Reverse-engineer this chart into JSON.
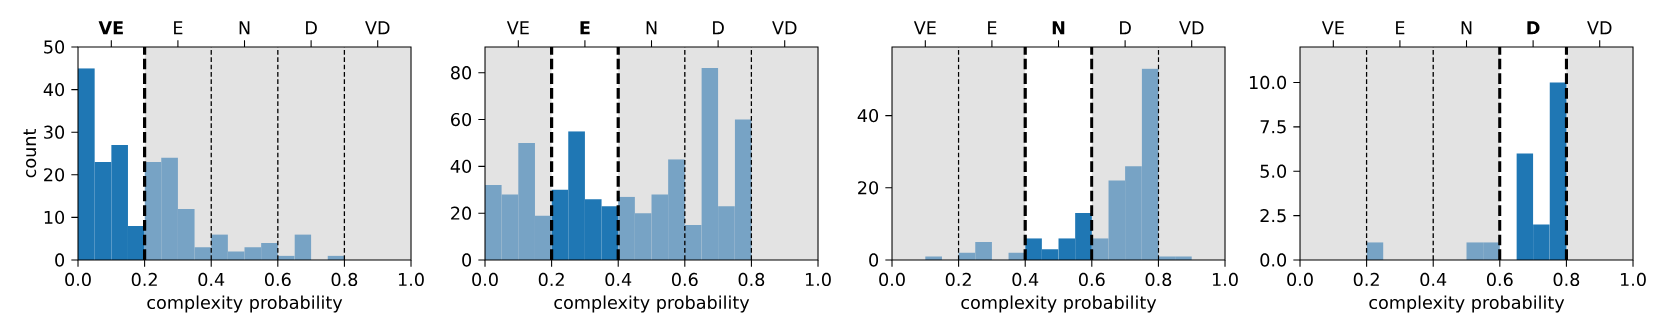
{
  "chart_data": [
    {
      "type": "histogram",
      "xlabel": "complexity probability",
      "ylabel": "count",
      "bins": [
        0,
        0.05,
        0.1,
        0.15,
        0.2,
        0.25,
        0.3,
        0.35,
        0.4,
        0.45,
        0.5,
        0.55,
        0.6,
        0.65,
        0.7,
        0.75,
        0.8,
        0.85,
        0.9,
        0.95,
        1.0
      ],
      "values": [
        45,
        23,
        27,
        8,
        23,
        24,
        12,
        3,
        6,
        2,
        3,
        4,
        1,
        6,
        0,
        1,
        0,
        0,
        0,
        0
      ],
      "colors": [
        "#1f77b4",
        "#1f77b4",
        "#1f77b4",
        "#1f77b4",
        "#77a3c5",
        "#77a3c5",
        "#77a3c5",
        "#77a3c5",
        "#77a3c5",
        "#77a3c5",
        "#77a3c5",
        "#77a3c5",
        "#77a3c5",
        "#77a3c5",
        "#77a3c5",
        "#77a3c5",
        "#77a3c5",
        "#77a3c5",
        "#77a3c5",
        "#77a3c5"
      ],
      "xlim": [
        0,
        1
      ],
      "ylim": [
        0,
        50
      ],
      "xticks": [
        {
          "value": 0,
          "label": "0.0"
        },
        {
          "value": 0.2,
          "label": "0.2"
        },
        {
          "value": 0.4,
          "label": "0.4"
        },
        {
          "value": 0.6,
          "label": "0.6"
        },
        {
          "value": 0.8,
          "label": "0.8"
        },
        {
          "value": 1,
          "label": "1.0"
        }
      ],
      "yticks": [
        0,
        10,
        20,
        30,
        40,
        50
      ],
      "annotations": [
        "**VE**",
        "E",
        "N",
        "D",
        "VD"
      ],
      "bands": [
        {
          "axis": "x",
          "from": 0.2,
          "to": 1.0,
          "color": "#e3e3e3"
        }
      ],
      "ref_lines": [
        {
          "axis": "x",
          "value": 0.2,
          "line_style": "dashed"
        },
        {
          "axis": "x",
          "value": 0.4,
          "line_style": "dashed"
        },
        {
          "axis": "x",
          "value": 0.6,
          "line_style": "dashed"
        },
        {
          "axis": "x",
          "value": 0.8,
          "line_style": "dashed"
        }
      ]
    },
    {
      "type": "histogram",
      "xlabel": "complexity probability",
      "bins": [
        0,
        0.05,
        0.1,
        0.15,
        0.2,
        0.25,
        0.3,
        0.35,
        0.4,
        0.45,
        0.5,
        0.55,
        0.6,
        0.65,
        0.7,
        0.75,
        0.8,
        0.85,
        0.9,
        0.95,
        1.0
      ],
      "values": [
        32,
        28,
        50,
        19,
        30,
        55,
        26,
        23,
        27,
        20,
        28,
        43,
        15,
        82,
        23,
        60,
        0,
        0,
        0,
        0
      ],
      "colors": [
        "#77a3c5",
        "#77a3c5",
        "#77a3c5",
        "#77a3c5",
        "#1f77b4",
        "#1f77b4",
        "#1f77b4",
        "#1f77b4",
        "#77a3c5",
        "#77a3c5",
        "#77a3c5",
        "#77a3c5",
        "#77a3c5",
        "#77a3c5",
        "#77a3c5",
        "#77a3c5",
        "#77a3c5",
        "#77a3c5",
        "#77a3c5",
        "#77a3c5"
      ],
      "xlim": [
        0,
        1
      ],
      "ylim": [
        0,
        91
      ],
      "xticks": [
        {
          "value": 0,
          "label": "0.0"
        },
        {
          "value": 0.2,
          "label": "0.2"
        },
        {
          "value": 0.4,
          "label": "0.4"
        },
        {
          "value": 0.6,
          "label": "0.6"
        },
        {
          "value": 0.8,
          "label": "0.8"
        },
        {
          "value": 1,
          "label": "1.0"
        }
      ],
      "yticks": [
        0,
        20,
        40,
        60,
        80
      ],
      "annotations": [
        "VE",
        "**E**",
        "N",
        "D",
        "VD"
      ],
      "bands": [
        {
          "axis": "x",
          "from": 0,
          "to": 0.2,
          "color": "#e3e3e3"
        },
        {
          "axis": "x",
          "from": 0.4,
          "to": 1.0,
          "color": "#e3e3e3"
        }
      ],
      "ref_lines": [
        {
          "axis": "x",
          "value": 0.2,
          "line_style": "dashed"
        },
        {
          "axis": "x",
          "value": 0.4,
          "line_style": "dashed"
        },
        {
          "axis": "x",
          "value": 0.6,
          "line_style": "dashed"
        },
        {
          "axis": "x",
          "value": 0.8,
          "line_style": "dashed"
        }
      ]
    },
    {
      "type": "histogram",
      "xlabel": "complexity probability",
      "bins": [
        0,
        0.05,
        0.1,
        0.15,
        0.2,
        0.25,
        0.3,
        0.35,
        0.4,
        0.45,
        0.5,
        0.55,
        0.6,
        0.65,
        0.7,
        0.75,
        0.8,
        0.85,
        0.9,
        0.95,
        1.0
      ],
      "values": [
        0,
        0,
        1,
        0,
        2,
        5,
        0,
        2,
        6,
        3,
        6,
        13,
        6,
        22,
        26,
        53,
        1,
        1,
        0,
        0
      ],
      "colors": [
        "#77a3c5",
        "#77a3c5",
        "#77a3c5",
        "#77a3c5",
        "#77a3c5",
        "#77a3c5",
        "#77a3c5",
        "#77a3c5",
        "#1f77b4",
        "#1f77b4",
        "#1f77b4",
        "#1f77b4",
        "#77a3c5",
        "#77a3c5",
        "#77a3c5",
        "#77a3c5",
        "#77a3c5",
        "#77a3c5",
        "#77a3c5",
        "#77a3c5"
      ],
      "xlim": [
        0,
        1
      ],
      "ylim": [
        0,
        59
      ],
      "xticks": [
        {
          "value": 0,
          "label": "0.0"
        },
        {
          "value": 0.2,
          "label": "0.2"
        },
        {
          "value": 0.4,
          "label": "0.4"
        },
        {
          "value": 0.6,
          "label": "0.6"
        },
        {
          "value": 0.8,
          "label": "0.8"
        },
        {
          "value": 1,
          "label": "1.0"
        }
      ],
      "yticks": [
        0,
        20,
        40
      ],
      "annotations": [
        "VE",
        "E",
        "**N**",
        "D",
        "VD"
      ],
      "bands": [
        {
          "axis": "x",
          "from": 0,
          "to": 0.4,
          "color": "#e3e3e3"
        },
        {
          "axis": "x",
          "from": 0.6,
          "to": 1.0,
          "color": "#e3e3e3"
        }
      ],
      "ref_lines": [
        {
          "axis": "x",
          "value": 0.2,
          "line_style": "dashed"
        },
        {
          "axis": "x",
          "value": 0.4,
          "line_style": "dashed"
        },
        {
          "axis": "x",
          "value": 0.6,
          "line_style": "dashed"
        },
        {
          "axis": "x",
          "value": 0.8,
          "line_style": "dashed"
        }
      ]
    },
    {
      "type": "histogram",
      "xlabel": "complexity probability",
      "bins": [
        0,
        0.05,
        0.1,
        0.15,
        0.2,
        0.25,
        0.3,
        0.35,
        0.4,
        0.45,
        0.5,
        0.55,
        0.6,
        0.65,
        0.7,
        0.75,
        0.8,
        0.85,
        0.9,
        0.95,
        1.0
      ],
      "values": [
        0,
        0,
        0,
        0,
        1,
        0,
        0,
        0,
        0,
        0,
        1,
        1,
        0,
        6,
        2,
        10,
        0,
        0,
        0,
        0
      ],
      "colors": [
        "#77a3c5",
        "#77a3c5",
        "#77a3c5",
        "#77a3c5",
        "#77a3c5",
        "#77a3c5",
        "#77a3c5",
        "#77a3c5",
        "#77a3c5",
        "#77a3c5",
        "#77a3c5",
        "#77a3c5",
        "#1f77b4",
        "#1f77b4",
        "#1f77b4",
        "#1f77b4",
        "#77a3c5",
        "#77a3c5",
        "#77a3c5",
        "#77a3c5"
      ],
      "xlim": [
        0,
        1
      ],
      "ylim": [
        0,
        12
      ],
      "xticks": [
        {
          "value": 0,
          "label": "0.0"
        },
        {
          "value": 0.2,
          "label": "0.2"
        },
        {
          "value": 0.4,
          "label": "0.4"
        },
        {
          "value": 0.6,
          "label": "0.6"
        },
        {
          "value": 0.8,
          "label": "0.8"
        },
        {
          "value": 1,
          "label": "1.0"
        }
      ],
      "yticks": [
        {
          "value": 0,
          "label": "0.0"
        },
        {
          "value": 2.5,
          "label": "2.5"
        },
        {
          "value": 5,
          "label": "5.0"
        },
        {
          "value": 7.5,
          "label": "7.5"
        },
        {
          "value": 10,
          "label": "10.0"
        }
      ],
      "annotations": [
        "VE",
        "E",
        "N",
        "**D**",
        "VD"
      ],
      "bands": [
        {
          "axis": "x",
          "from": 0,
          "to": 0.6,
          "color": "#e3e3e3"
        },
        {
          "axis": "x",
          "from": 0.8,
          "to": 1.0,
          "color": "#e3e3e3"
        }
      ],
      "ref_lines": [
        {
          "axis": "x",
          "value": 0.2,
          "line_style": "dashed"
        },
        {
          "axis": "x",
          "value": 0.4,
          "line_style": "dashed"
        },
        {
          "axis": "x",
          "value": 0.6,
          "line_style": "dashed"
        },
        {
          "axis": "x",
          "value": 0.8,
          "line_style": "dashed"
        }
      ]
    }
  ]
}
